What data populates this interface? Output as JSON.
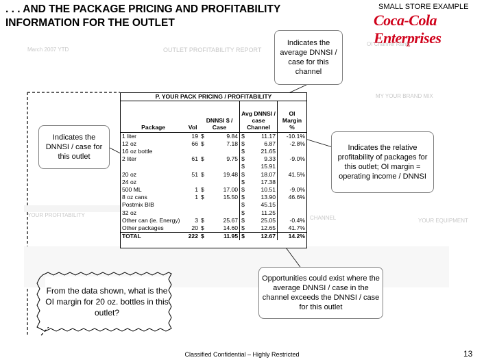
{
  "header": {
    "title_line1": ". . . AND THE PACKAGE PRICING AND PROFITABILITY",
    "title_line2": "INFORMATION FOR THE OUTLET",
    "example": "SMALL STORE EXAMPLE",
    "logo": "Coca-Cola Enterprises"
  },
  "background": {
    "date": "March 2007 YTD",
    "report": "OUTLET PROFITABILITY REPORT",
    "rank": "OI Channel Rank",
    "brand_mix": "MY YOUR BRAND MIX",
    "profitability": "YOUR PROFITABILITY",
    "channel": "CHANNEL",
    "equipment": "YOUR EQUIPMENT"
  },
  "table": {
    "heading": "P. YOUR PACK PRICING / PROFITABILITY",
    "columns": [
      "Package",
      "Vol",
      "DNNSI $ / Case",
      "Avg DNNSI / case Channel",
      "OI Margin %"
    ],
    "rows": [
      [
        "1 liter",
        "19",
        "$",
        "9.84",
        "$",
        "11.17",
        "-10.1%"
      ],
      [
        "12 oz",
        "66",
        "$",
        "7.18",
        "$",
        "6.87",
        "-2.8%"
      ],
      [
        "16 oz bottle",
        null,
        null,
        null,
        "$",
        "21.65",
        null
      ],
      [
        "2 liter",
        "61",
        "$",
        "9.75",
        "$",
        "9.33",
        "-9.0%"
      ],
      [
        null,
        null,
        null,
        null,
        "$",
        "15.91",
        null
      ],
      [
        "20 oz",
        "51",
        "$",
        "19.48",
        "$",
        "18.07",
        "41.5%"
      ],
      [
        "24 oz",
        null,
        null,
        null,
        "$",
        "17.38",
        null
      ],
      [
        "500 ML",
        "1",
        "$",
        "17.00",
        "$",
        "10.51",
        "-9.0%"
      ],
      [
        "8 oz cans",
        "1",
        "$",
        "15.50",
        "$",
        "13.90",
        "46.6%"
      ],
      [
        "Postmix BIB",
        null,
        null,
        null,
        "$",
        "45.15",
        null
      ],
      [
        "32 oz",
        null,
        null,
        null,
        "$",
        "11.25",
        null
      ],
      [
        "Other can (ie. Energy)",
        "3",
        "$",
        "25.67",
        "$",
        "25.05",
        "-0.4%"
      ],
      [
        "Other packages",
        "20",
        "$",
        "14.60",
        "$",
        "12.65",
        "41.7%"
      ],
      [
        "TOTAL",
        "222",
        "$",
        "11.95",
        "$",
        "12.67",
        "14.2%"
      ]
    ]
  },
  "callouts": {
    "channel_avg": "Indicates the average DNNSI / case for this channel",
    "outlet": "Indicates the DNNSI / case for this outlet",
    "relative": "Indicates the relative profitability of packages for this outlet; OI margin = operating income / DNNSI",
    "opportunities": "Opportunities could exist where the average DNNSI / case in the channel exceeds the DNNSI / case for this outlet"
  },
  "question": "From the data shown, what is the OI margin for 20 oz. bottles in this outlet?",
  "footer": {
    "confidential": "Classified Confidential – Highly Restricted",
    "page": "13"
  }
}
